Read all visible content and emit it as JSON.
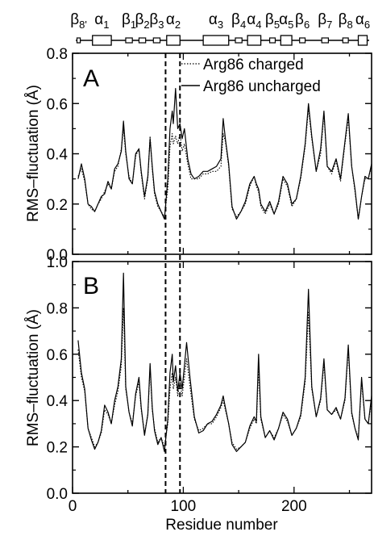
{
  "secondary_structure": {
    "elements": [
      {
        "greek": "β",
        "sub": "8'",
        "type": "strand",
        "start": 4,
        "end": 7
      },
      {
        "greek": "α",
        "sub": "1",
        "type": "helix",
        "start": 18,
        "end": 35
      },
      {
        "greek": "β",
        "sub": "1",
        "type": "strand",
        "start": 48,
        "end": 54
      },
      {
        "greek": "β",
        "sub": "2",
        "type": "strand",
        "start": 60,
        "end": 66
      },
      {
        "greek": "β",
        "sub": "3",
        "type": "strand",
        "start": 73,
        "end": 79
      },
      {
        "greek": "α",
        "sub": "2",
        "type": "helix",
        "start": 85,
        "end": 97
      },
      {
        "greek": "α",
        "sub": "3",
        "type": "helix",
        "start": 118,
        "end": 141
      },
      {
        "greek": "β",
        "sub": "4",
        "type": "strand",
        "start": 147,
        "end": 153
      },
      {
        "greek": "α",
        "sub": "4",
        "type": "helix",
        "start": 158,
        "end": 170
      },
      {
        "greek": "β",
        "sub": "5",
        "type": "strand",
        "start": 178,
        "end": 183
      },
      {
        "greek": "α",
        "sub": "5",
        "type": "helix",
        "start": 188,
        "end": 198
      },
      {
        "greek": "β",
        "sub": "6",
        "type": "strand",
        "start": 205,
        "end": 210
      },
      {
        "greek": "β",
        "sub": "7",
        "type": "strand",
        "start": 225,
        "end": 231
      },
      {
        "greek": "β",
        "sub": "8",
        "type": "strand",
        "start": 244,
        "end": 249
      },
      {
        "greek": "α",
        "sub": "6",
        "type": "helix",
        "start": 258,
        "end": 266
      }
    ]
  },
  "chart_data": [
    {
      "type": "line",
      "panel": "A",
      "xlabel": "",
      "ylabel": "RMS–fluctuation (Å)",
      "xlim": [
        0,
        270
      ],
      "ylim": [
        0,
        0.8
      ],
      "yticks": [
        0.0,
        0.2,
        0.4,
        0.6,
        0.8
      ],
      "ytick_labels": [
        "0.0",
        "0.2",
        "0.4",
        "0.6",
        "0.8"
      ],
      "xticks": [
        0,
        100,
        200
      ],
      "vlines": [
        84,
        97
      ],
      "legend": {
        "placement": "top-right"
      },
      "series": [
        {
          "name": "Arg86 charged",
          "style": "dotted",
          "x": [
            5,
            8,
            11,
            14,
            17,
            20,
            23,
            26,
            29,
            32,
            35,
            38,
            41,
            44,
            46,
            48,
            51,
            54,
            57,
            60,
            62,
            65,
            68,
            70,
            72,
            74,
            77,
            80,
            83,
            86,
            88,
            90,
            91,
            93,
            95,
            97,
            99,
            101,
            104,
            107,
            110,
            114,
            118,
            122,
            126,
            130,
            134,
            136,
            138,
            141,
            144,
            148,
            152,
            156,
            160,
            164,
            166,
            168,
            170,
            174,
            178,
            182,
            186,
            190,
            194,
            198,
            202,
            206,
            210,
            213,
            216,
            220,
            224,
            227,
            230,
            234,
            238,
            242,
            246,
            249,
            252,
            255,
            258,
            261,
            264,
            267,
            270
          ],
          "y": [
            0.31,
            0.34,
            0.29,
            0.2,
            0.18,
            0.17,
            0.2,
            0.22,
            0.25,
            0.28,
            0.26,
            0.33,
            0.35,
            0.42,
            0.5,
            0.4,
            0.31,
            0.28,
            0.39,
            0.42,
            0.32,
            0.22,
            0.3,
            0.47,
            0.34,
            0.24,
            0.19,
            0.17,
            0.15,
            0.26,
            0.43,
            0.48,
            0.44,
            0.47,
            0.44,
            0.48,
            0.41,
            0.44,
            0.36,
            0.3,
            0.3,
            0.3,
            0.32,
            0.32,
            0.33,
            0.33,
            0.35,
            0.48,
            0.45,
            0.35,
            0.18,
            0.15,
            0.17,
            0.2,
            0.27,
            0.31,
            0.27,
            0.25,
            0.19,
            0.16,
            0.2,
            0.16,
            0.2,
            0.3,
            0.27,
            0.19,
            0.22,
            0.3,
            0.43,
            0.58,
            0.46,
            0.33,
            0.4,
            0.56,
            0.35,
            0.32,
            0.37,
            0.29,
            0.44,
            0.54,
            0.35,
            0.25,
            0.14,
            0.23,
            0.3,
            0.3,
            0.35
          ]
        },
        {
          "name": "Arg86 uncharged",
          "style": "solid",
          "x": [
            5,
            8,
            11,
            14,
            17,
            20,
            23,
            26,
            29,
            32,
            35,
            38,
            41,
            44,
            46,
            48,
            51,
            54,
            57,
            60,
            62,
            65,
            68,
            70,
            72,
            74,
            77,
            80,
            83,
            86,
            88,
            90,
            91,
            93,
            95,
            97,
            99,
            101,
            104,
            107,
            110,
            114,
            118,
            122,
            126,
            130,
            134,
            136,
            138,
            141,
            144,
            148,
            152,
            156,
            160,
            164,
            166,
            168,
            170,
            174,
            178,
            182,
            186,
            190,
            194,
            198,
            202,
            206,
            210,
            213,
            216,
            220,
            224,
            227,
            230,
            234,
            238,
            242,
            246,
            249,
            252,
            255,
            258,
            261,
            264,
            267,
            270
          ],
          "y": [
            0.3,
            0.36,
            0.3,
            0.2,
            0.19,
            0.17,
            0.2,
            0.23,
            0.24,
            0.29,
            0.26,
            0.34,
            0.36,
            0.41,
            0.53,
            0.41,
            0.3,
            0.28,
            0.4,
            0.42,
            0.33,
            0.23,
            0.31,
            0.46,
            0.35,
            0.25,
            0.2,
            0.17,
            0.14,
            0.3,
            0.5,
            0.57,
            0.52,
            0.66,
            0.5,
            0.52,
            0.46,
            0.5,
            0.38,
            0.32,
            0.3,
            0.31,
            0.33,
            0.33,
            0.34,
            0.35,
            0.38,
            0.54,
            0.46,
            0.36,
            0.19,
            0.14,
            0.17,
            0.21,
            0.28,
            0.31,
            0.28,
            0.26,
            0.2,
            0.17,
            0.21,
            0.16,
            0.21,
            0.31,
            0.28,
            0.2,
            0.22,
            0.31,
            0.44,
            0.6,
            0.47,
            0.33,
            0.42,
            0.57,
            0.35,
            0.33,
            0.38,
            0.3,
            0.45,
            0.56,
            0.35,
            0.26,
            0.14,
            0.23,
            0.31,
            0.3,
            0.36
          ]
        }
      ]
    },
    {
      "type": "line",
      "panel": "B",
      "xlabel": "Residue number",
      "ylabel": "RMS–fluctuation (Å)",
      "xlim": [
        0,
        270
      ],
      "ylim": [
        0,
        1.0
      ],
      "yticks": [
        0.0,
        0.2,
        0.4,
        0.6,
        0.8,
        1.0
      ],
      "ytick_labels": [
        "0.0",
        "0.2",
        "0.4",
        "0.6",
        "0.8",
        "1.0"
      ],
      "xticks": [
        0,
        100,
        200
      ],
      "xtick_labels": [
        "0",
        "100",
        "200"
      ],
      "vlines": [
        84,
        97
      ],
      "series": [
        {
          "name": "Arg86 charged",
          "style": "dotted",
          "x": [
            5,
            8,
            11,
            14,
            17,
            20,
            23,
            26,
            29,
            32,
            35,
            38,
            41,
            44,
            46,
            48,
            51,
            54,
            57,
            60,
            62,
            65,
            68,
            70,
            72,
            74,
            77,
            80,
            83,
            86,
            88,
            90,
            91,
            93,
            95,
            97,
            99,
            101,
            103,
            106,
            110,
            114,
            118,
            122,
            126,
            130,
            134,
            136,
            138,
            141,
            144,
            148,
            152,
            156,
            160,
            164,
            166,
            168,
            170,
            174,
            178,
            182,
            186,
            190,
            194,
            198,
            202,
            206,
            210,
            213,
            216,
            220,
            224,
            227,
            230,
            234,
            238,
            242,
            246,
            249,
            252,
            255,
            258,
            261,
            264,
            267,
            270
          ],
          "y": [
            0.62,
            0.5,
            0.44,
            0.28,
            0.24,
            0.2,
            0.22,
            0.26,
            0.36,
            0.34,
            0.3,
            0.38,
            0.44,
            0.55,
            0.8,
            0.45,
            0.35,
            0.3,
            0.42,
            0.48,
            0.36,
            0.26,
            0.34,
            0.54,
            0.36,
            0.28,
            0.22,
            0.24,
            0.2,
            0.3,
            0.45,
            0.52,
            0.45,
            0.5,
            0.42,
            0.48,
            0.42,
            0.5,
            0.58,
            0.46,
            0.32,
            0.27,
            0.28,
            0.3,
            0.3,
            0.33,
            0.37,
            0.4,
            0.36,
            0.3,
            0.22,
            0.19,
            0.2,
            0.22,
            0.28,
            0.32,
            0.3,
            0.54,
            0.32,
            0.24,
            0.27,
            0.24,
            0.28,
            0.34,
            0.31,
            0.25,
            0.28,
            0.33,
            0.48,
            0.78,
            0.45,
            0.33,
            0.4,
            0.56,
            0.36,
            0.34,
            0.36,
            0.32,
            0.4,
            0.62,
            0.34,
            0.28,
            0.24,
            0.48,
            0.32,
            0.3,
            0.4
          ]
        },
        {
          "name": "Arg86 uncharged",
          "style": "solid",
          "x": [
            5,
            8,
            11,
            14,
            17,
            20,
            23,
            26,
            29,
            32,
            35,
            38,
            41,
            44,
            46,
            48,
            51,
            54,
            57,
            60,
            62,
            65,
            68,
            70,
            72,
            74,
            77,
            80,
            83,
            86,
            88,
            90,
            91,
            93,
            95,
            97,
            99,
            101,
            103,
            106,
            110,
            114,
            118,
            122,
            126,
            130,
            134,
            136,
            138,
            141,
            144,
            148,
            152,
            156,
            160,
            164,
            166,
            168,
            170,
            174,
            178,
            182,
            186,
            190,
            194,
            198,
            202,
            206,
            210,
            213,
            216,
            220,
            224,
            227,
            230,
            234,
            238,
            242,
            246,
            249,
            252,
            255,
            258,
            261,
            264,
            267,
            270
          ],
          "y": [
            0.66,
            0.52,
            0.45,
            0.28,
            0.23,
            0.19,
            0.22,
            0.27,
            0.38,
            0.35,
            0.3,
            0.4,
            0.46,
            0.58,
            0.95,
            0.46,
            0.35,
            0.29,
            0.43,
            0.5,
            0.37,
            0.25,
            0.34,
            0.56,
            0.37,
            0.27,
            0.21,
            0.24,
            0.18,
            0.32,
            0.52,
            0.6,
            0.48,
            0.55,
            0.44,
            0.52,
            0.45,
            0.55,
            0.65,
            0.5,
            0.33,
            0.26,
            0.27,
            0.3,
            0.31,
            0.34,
            0.38,
            0.42,
            0.37,
            0.3,
            0.21,
            0.18,
            0.2,
            0.22,
            0.29,
            0.33,
            0.31,
            0.6,
            0.33,
            0.24,
            0.27,
            0.23,
            0.28,
            0.35,
            0.32,
            0.25,
            0.28,
            0.34,
            0.5,
            0.88,
            0.46,
            0.33,
            0.41,
            0.58,
            0.36,
            0.34,
            0.37,
            0.32,
            0.41,
            0.64,
            0.35,
            0.28,
            0.23,
            0.5,
            0.32,
            0.3,
            0.42
          ]
        }
      ]
    }
  ]
}
